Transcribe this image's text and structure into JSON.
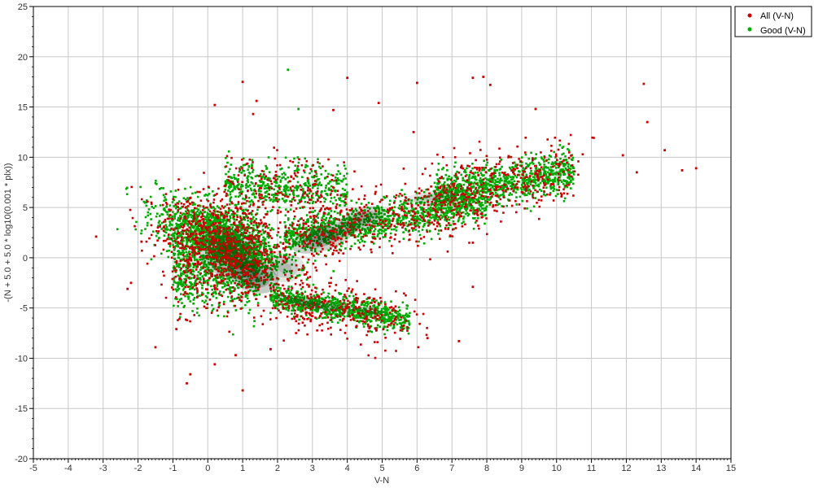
{
  "chart_data": {
    "type": "scatter",
    "xlabel": "V-N",
    "ylabel": "-(N + 5.0 + 5.0 * log10(0.001 * plx))",
    "xlim": [
      -5,
      15
    ],
    "ylim": [
      -20,
      25
    ],
    "x_ticks": [
      "-5",
      "-4",
      "-3",
      "-2",
      "-1",
      "0",
      "1",
      "2",
      "3",
      "4",
      "5",
      "6",
      "7",
      "8",
      "9",
      "10",
      "11",
      "12",
      "13",
      "14",
      "15"
    ],
    "y_ticks": [
      "-20",
      "-15",
      "-10",
      "-5",
      "0",
      "5",
      "10",
      "15",
      "20",
      "25"
    ],
    "grid": true,
    "legend_position": "top-right",
    "series": [
      {
        "name": "All (V-N)",
        "color": "#cc0000"
      },
      {
        "name": "Good (V-N)",
        "color": "#00aa00"
      }
    ],
    "outlier_points": [
      [
        -3.2,
        2.1
      ],
      [
        -2.3,
        -3.1
      ],
      [
        -2.2,
        -2.5
      ],
      [
        -1.5,
        -8.9
      ],
      [
        -0.6,
        -12.5
      ],
      [
        -0.5,
        -11.6
      ],
      [
        0.2,
        -10.6
      ],
      [
        1.0,
        -13.2
      ],
      [
        1.0,
        17.5
      ],
      [
        1.4,
        15.6
      ],
      [
        2.3,
        18.7
      ],
      [
        4.0,
        17.9
      ],
      [
        4.9,
        15.4
      ],
      [
        6.0,
        17.4
      ],
      [
        7.6,
        17.9
      ],
      [
        7.9,
        18.0
      ],
      [
        8.1,
        17.2
      ],
      [
        12.5,
        17.3
      ],
      [
        12.6,
        13.5
      ],
      [
        13.1,
        10.7
      ],
      [
        13.6,
        8.7
      ],
      [
        14.0,
        8.9
      ],
      [
        7.2,
        -8.3
      ],
      [
        6.3,
        -8.0
      ],
      [
        7.6,
        -2.9
      ],
      [
        7.6,
        1.5
      ],
      [
        2.6,
        14.8
      ],
      [
        3.6,
        14.7
      ],
      [
        0.2,
        15.2
      ],
      [
        1.3,
        14.3
      ],
      [
        5.9,
        12.5
      ],
      [
        9.4,
        14.8
      ],
      [
        12.3,
        8.5
      ],
      [
        0.8,
        -9.7
      ],
      [
        11.9,
        10.2
      ],
      [
        1.8,
        -9.1
      ],
      [
        -0.9,
        -7.1
      ],
      [
        -1.9,
        1.6
      ]
    ]
  }
}
